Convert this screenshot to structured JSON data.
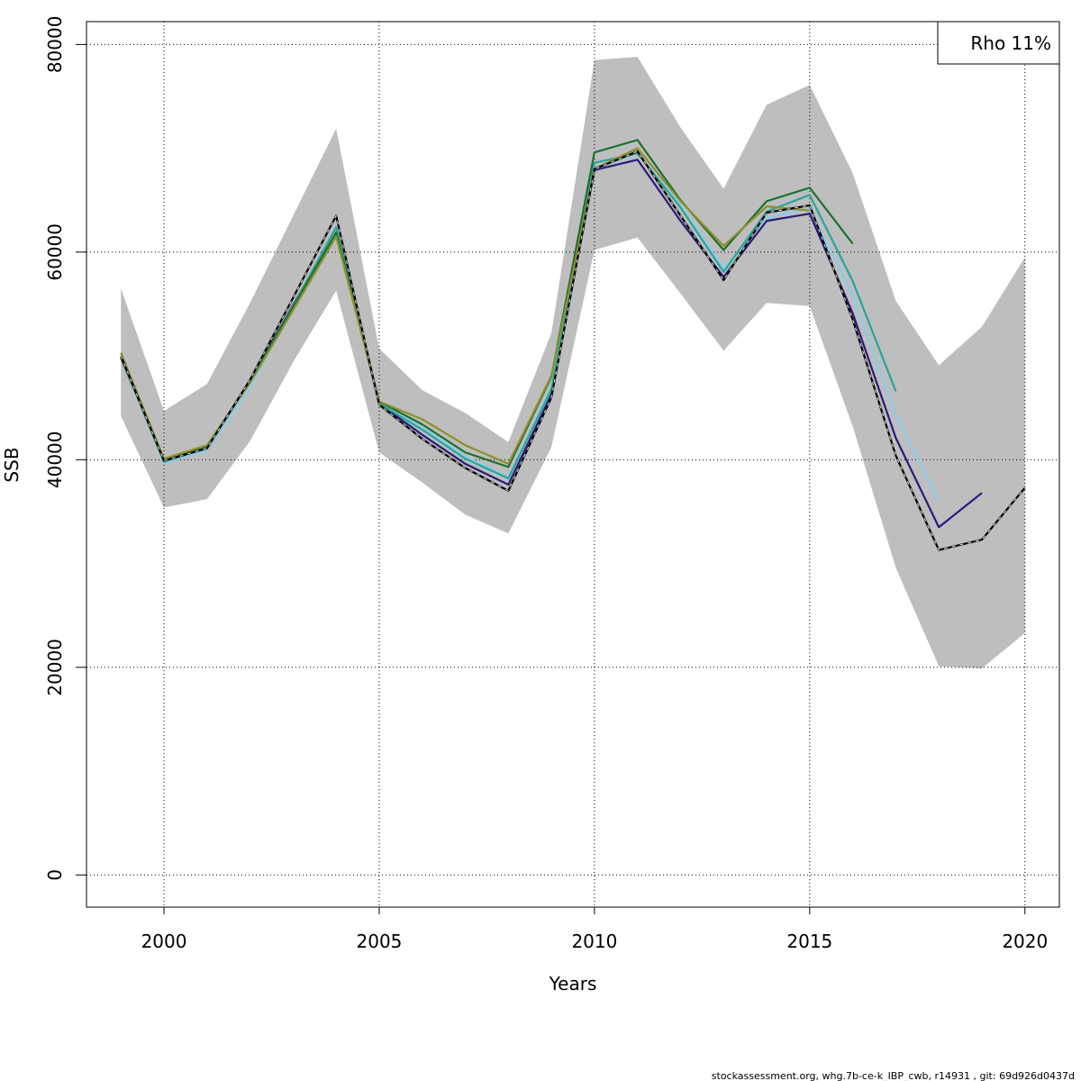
{
  "chart_data": {
    "type": "line",
    "xlabel": "Years",
    "ylabel": "SSB",
    "xlim": [
      1998.2,
      2020.8
    ],
    "ylim": [
      -3100,
      82200
    ],
    "x_ticks": [
      "2000",
      "2005",
      "2010",
      "2015",
      "2020"
    ],
    "y_ticks": [
      "0",
      "20000",
      "40000",
      "60000",
      "80000"
    ],
    "grid": true,
    "legend": {
      "placement": "top-right",
      "text": "Rho 11%"
    },
    "confidence_band": {
      "color": "#bebebe",
      "x": [
        1999,
        2000,
        2001,
        2002,
        2003,
        2004,
        2005,
        2006,
        2007,
        2008,
        2009,
        2010,
        2011,
        2012,
        2013,
        2014,
        2015,
        2016,
        2017,
        2018,
        2019,
        2020
      ],
      "upper": [
        56500,
        44700,
        47300,
        55100,
        63500,
        71900,
        50700,
        46700,
        44500,
        41700,
        52200,
        78500,
        78800,
        72000,
        66100,
        74200,
        76100,
        67600,
        55300,
        49100,
        52800,
        59500
      ],
      "lower": [
        44200,
        35400,
        36200,
        41800,
        49400,
        56300,
        40700,
        37800,
        34700,
        32900,
        41200,
        60200,
        61400,
        56000,
        50500,
        55100,
        54800,
        43200,
        29600,
        20100,
        19900,
        23300
      ]
    },
    "series": [
      {
        "color": "#2a1a7a",
        "dash": false,
        "x": [
          1999,
          2000,
          2001,
          2002,
          2003,
          2004,
          2005,
          2006,
          2007,
          2008,
          2009,
          2010,
          2011,
          2012,
          2013,
          2014,
          2015,
          2016,
          2017,
          2018,
          2019
        ],
        "y": [
          49800,
          39900,
          41200,
          47600,
          54900,
          62100,
          45400,
          42400,
          39600,
          37600,
          46300,
          67900,
          68900,
          63000,
          57600,
          63000,
          63700,
          54100,
          42100,
          33500,
          36800
        ]
      },
      {
        "color": "#87ceeb",
        "dash": false,
        "x": [
          1999,
          2000,
          2001,
          2002,
          2003,
          2004,
          2005,
          2006,
          2007,
          2008,
          2009,
          2010,
          2011,
          2012,
          2013,
          2014,
          2015,
          2016,
          2017,
          2018
        ],
        "y": [
          49900,
          39700,
          40900,
          47000,
          54600,
          62200,
          45400,
          43100,
          40300,
          38300,
          47000,
          68000,
          69500,
          64500,
          58400,
          63300,
          64200,
          55800,
          44300,
          36100
        ]
      },
      {
        "color": "#26a69a",
        "dash": false,
        "x": [
          1999,
          2000,
          2001,
          2002,
          2003,
          2004,
          2005,
          2006,
          2007,
          2008,
          2009,
          2010,
          2011,
          2012,
          2013,
          2014,
          2015,
          2016,
          2017
        ],
        "y": [
          49900,
          39800,
          41200,
          47500,
          54800,
          62400,
          45400,
          42900,
          40100,
          38200,
          46800,
          68600,
          69500,
          64300,
          58100,
          63900,
          65500,
          57200,
          46600
        ]
      },
      {
        "color": "#1a7030",
        "dash": false,
        "x": [
          1999,
          2000,
          2001,
          2002,
          2003,
          2004,
          2005,
          2006,
          2007,
          2008,
          2009,
          2010,
          2011,
          2012,
          2013,
          2014,
          2015,
          2016
        ],
        "y": [
          49900,
          40000,
          41300,
          47500,
          54700,
          61900,
          45600,
          43400,
          40700,
          39300,
          48000,
          69600,
          70800,
          65000,
          60200,
          64900,
          66200,
          60800
        ]
      },
      {
        "color": "#8f8f2a",
        "dash": false,
        "x": [
          1999,
          2000,
          2001,
          2002,
          2003,
          2004,
          2005,
          2006,
          2007,
          2008,
          2009,
          2010,
          2011,
          2012,
          2013,
          2014,
          2015
        ],
        "y": [
          50300,
          40100,
          41400,
          47400,
          54400,
          61500,
          45600,
          43900,
          41400,
          39600,
          48100,
          68000,
          70000,
          64900,
          60600,
          64400,
          64000
        ]
      },
      {
        "color": "#000000",
        "dash": false,
        "x": [
          1999,
          2000,
          2001,
          2002,
          2003,
          2004,
          2005,
          2006,
          2007,
          2008,
          2009,
          2010,
          2011,
          2012,
          2013,
          2014,
          2015,
          2016,
          2017,
          2018,
          2019,
          2020
        ],
        "y": [
          50000,
          39900,
          41100,
          47700,
          55600,
          63500,
          45300,
          42000,
          39200,
          37000,
          46000,
          68000,
          69700,
          63500,
          57300,
          63800,
          64500,
          53500,
          40400,
          31300,
          32300,
          37300
        ]
      },
      {
        "color": "#c8c8c8",
        "dash": true,
        "x": [
          1999,
          2000,
          2001,
          2002,
          2003,
          2004,
          2005,
          2006,
          2007,
          2008,
          2009,
          2010,
          2011,
          2012,
          2013,
          2014,
          2015,
          2016,
          2017,
          2018,
          2019,
          2020
        ],
        "y": [
          50000,
          39900,
          41100,
          47700,
          55600,
          63500,
          45300,
          42000,
          39200,
          37000,
          46000,
          68000,
          69700,
          63500,
          57300,
          63800,
          64500,
          53500,
          40400,
          31300,
          32300,
          37300
        ]
      }
    ]
  },
  "footer": {
    "text": "stockassessment.org, whg.7b-ce-k_IBP_cwb, r14931 , git: 69d926d0437d"
  }
}
